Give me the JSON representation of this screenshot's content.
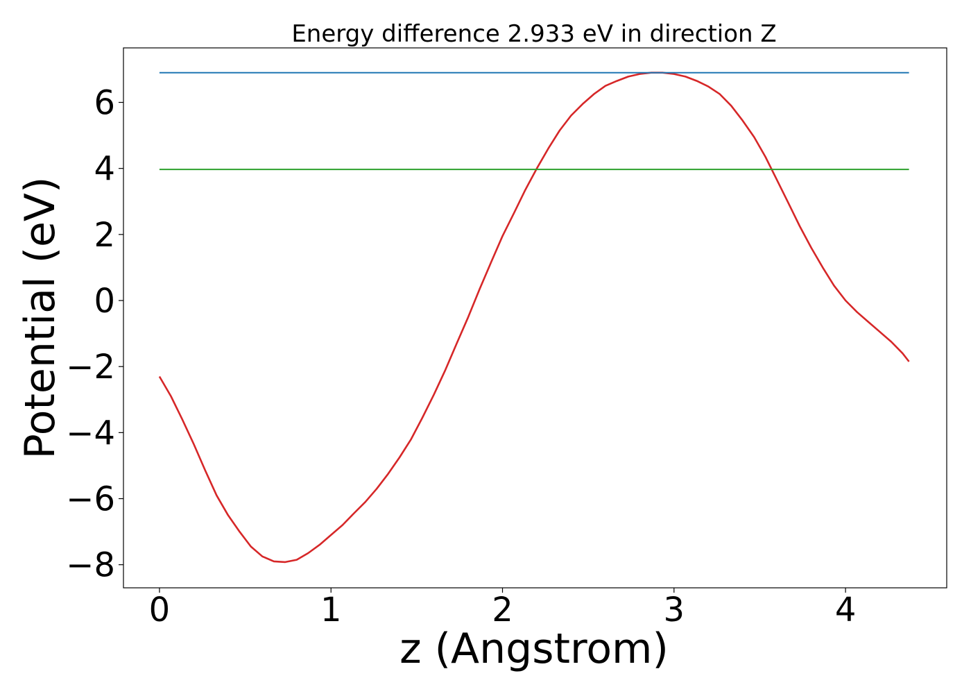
{
  "chart_data": {
    "type": "line",
    "title": "Energy difference 2.933 eV in direction Z",
    "xlabel": "z (Angstrom)",
    "ylabel": "Potential (eV)",
    "xlim": [
      -0.21,
      4.59
    ],
    "ylim": [
      -8.7,
      7.65
    ],
    "x_ticks": [
      0,
      1,
      2,
      3,
      4
    ],
    "x_tick_labels": [
      "0",
      "1",
      "2",
      "3",
      "4"
    ],
    "y_ticks": [
      -8,
      -6,
      -4,
      -2,
      0,
      2,
      4,
      6
    ],
    "y_tick_labels": [
      "−8",
      "−6",
      "−4",
      "−2",
      "0",
      "2",
      "4",
      "6"
    ],
    "grid": false,
    "series": [
      {
        "color": "#d62728",
        "x": [
          0.0,
          0.067,
          0.133,
          0.2,
          0.267,
          0.333,
          0.4,
          0.467,
          0.533,
          0.6,
          0.667,
          0.733,
          0.8,
          0.867,
          0.933,
          1.0,
          1.067,
          1.133,
          1.2,
          1.267,
          1.333,
          1.4,
          1.467,
          1.533,
          1.6,
          1.667,
          1.733,
          1.8,
          1.867,
          1.933,
          2.0,
          2.067,
          2.133,
          2.2,
          2.267,
          2.333,
          2.4,
          2.467,
          2.533,
          2.6,
          2.667,
          2.733,
          2.8,
          2.867,
          2.933,
          3.0,
          3.067,
          3.133,
          3.2,
          3.267,
          3.333,
          3.4,
          3.467,
          3.533,
          3.6,
          3.667,
          3.733,
          3.8,
          3.867,
          3.933,
          4.0,
          4.067,
          4.133,
          4.2,
          4.267,
          4.333,
          4.37
        ],
        "y": [
          -2.3,
          -2.9,
          -3.6,
          -4.35,
          -5.15,
          -5.9,
          -6.5,
          -7.0,
          -7.45,
          -7.75,
          -7.9,
          -7.92,
          -7.85,
          -7.65,
          -7.4,
          -7.1,
          -6.8,
          -6.45,
          -6.1,
          -5.7,
          -5.25,
          -4.75,
          -4.2,
          -3.55,
          -2.85,
          -2.1,
          -1.3,
          -0.5,
          0.35,
          1.15,
          1.95,
          2.65,
          3.35,
          4.0,
          4.6,
          5.15,
          5.6,
          5.95,
          6.25,
          6.5,
          6.65,
          6.78,
          6.86,
          6.9,
          6.9,
          6.86,
          6.78,
          6.65,
          6.48,
          6.25,
          5.9,
          5.45,
          4.95,
          4.35,
          3.65,
          2.95,
          2.25,
          1.6,
          1.0,
          0.45,
          0.0,
          -0.35,
          -0.65,
          -0.95,
          -1.25,
          -1.6,
          -1.85
        ]
      },
      {
        "color": "#1f77b4",
        "x": [
          0.0,
          4.37
        ],
        "y": [
          6.9,
          6.9
        ]
      },
      {
        "color": "#2ca02c",
        "x": [
          0.0,
          4.37
        ],
        "y": [
          3.97,
          3.97
        ]
      }
    ]
  }
}
